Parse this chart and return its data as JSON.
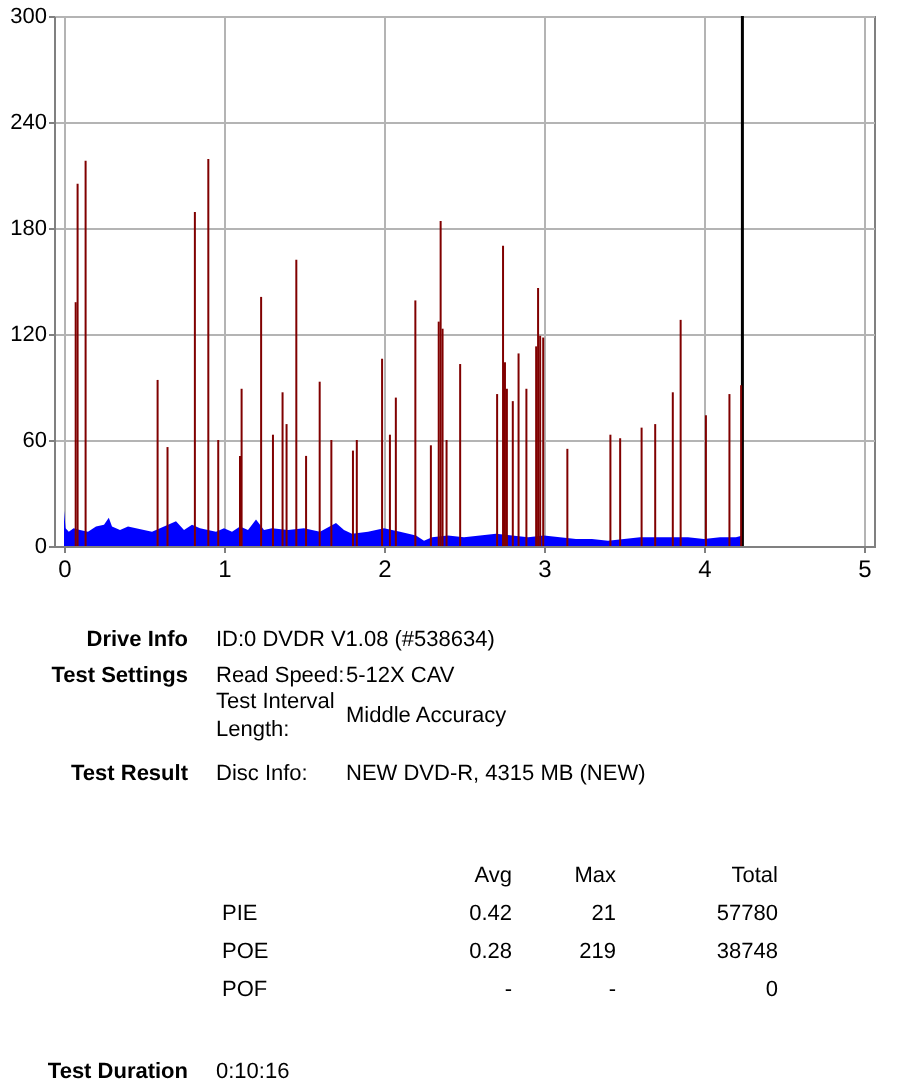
{
  "chart_data": {
    "type": "bar",
    "xlim": [
      0,
      5
    ],
    "xticks": [
      0,
      1,
      2,
      3,
      4,
      5
    ],
    "ylim": [
      0,
      300
    ],
    "yticks": [
      0,
      60,
      120,
      180,
      240,
      300
    ],
    "grid": true,
    "series": [
      {
        "type": "area",
        "color": "#0000ff",
        "x": [
          0,
          0.01,
          0.03,
          0.06,
          0.1,
          0.15,
          0.2,
          0.25,
          0.28,
          0.3,
          0.35,
          0.4,
          0.45,
          0.5,
          0.55,
          0.6,
          0.65,
          0.7,
          0.75,
          0.8,
          0.85,
          0.9,
          0.95,
          1.0,
          1.05,
          1.1,
          1.15,
          1.2,
          1.25,
          1.3,
          1.4,
          1.5,
          1.6,
          1.7,
          1.75,
          1.8,
          1.9,
          2.0,
          2.1,
          2.2,
          2.25,
          2.3,
          2.4,
          2.5,
          2.6,
          2.7,
          2.8,
          2.9,
          3.0,
          3.1,
          3.2,
          3.3,
          3.4,
          3.5,
          3.6,
          3.7,
          3.8,
          3.9,
          4.0,
          4.1,
          4.2,
          4.24
        ],
        "values": [
          20,
          10,
          8,
          10,
          9,
          8,
          11,
          12,
          16,
          11,
          9,
          11,
          10,
          9,
          8,
          10,
          12,
          14,
          9,
          12,
          10,
          9,
          8,
          10,
          8,
          11,
          9,
          15,
          9,
          10,
          9,
          10,
          8,
          13,
          9,
          7,
          8,
          10,
          8,
          6,
          3,
          5,
          6,
          5,
          6,
          7,
          6,
          5,
          6,
          5,
          4,
          4,
          3,
          4,
          5,
          5,
          5,
          5,
          4,
          5,
          5,
          6
        ]
      },
      {
        "color": "#800000",
        "x": [
          0.073,
          0.085,
          0.135,
          0.585,
          0.647,
          0.818,
          0.902,
          0.964,
          1.1,
          1.11,
          1.232,
          1.306,
          1.366,
          1.391,
          1.452,
          1.513,
          1.598,
          1.671,
          1.806,
          1.83,
          1.988,
          2.037,
          2.074,
          2.196,
          2.293,
          2.342,
          2.354,
          2.366,
          2.391,
          2.476,
          2.707,
          2.744,
          2.756,
          2.768,
          2.805,
          2.841,
          2.89,
          2.951,
          2.963,
          2.976,
          2.995,
          3.146,
          3.415,
          3.476,
          3.61,
          3.695,
          3.805,
          3.854,
          4.012,
          4.159,
          4.232
        ],
        "values": [
          138,
          205,
          218,
          94,
          56,
          189,
          219,
          60,
          51,
          89,
          141,
          63,
          87,
          69,
          162,
          51,
          93,
          60,
          54,
          60,
          106,
          63,
          84,
          139,
          57,
          127,
          184,
          123,
          60,
          103,
          86,
          170,
          104,
          89,
          82,
          109,
          89,
          113,
          146,
          119,
          118,
          55,
          63,
          61,
          67,
          69,
          87,
          128,
          74,
          86,
          91
        ]
      }
    ],
    "ref_lines": [
      {
        "axis": "x",
        "value": 4.24,
        "color": "#000000"
      }
    ],
    "annotations": [
      "Drive Info",
      "ID:0 DVDR V1.08 (#538634)",
      "Test Settings",
      "Read Speed:",
      "5-12X CAV",
      "Test Interval Length:",
      "Middle Accuracy",
      "Test Result",
      "Disc Info:",
      "NEW DVD-R, 4315 MB (NEW)",
      "Avg",
      "Max",
      "Total",
      "PIE",
      "0.42",
      "21",
      "57780",
      "POE",
      "0.28",
      "219",
      "38748",
      "POF",
      "-",
      "-",
      "0",
      "Test Duration",
      "0:10:16"
    ]
  }
}
